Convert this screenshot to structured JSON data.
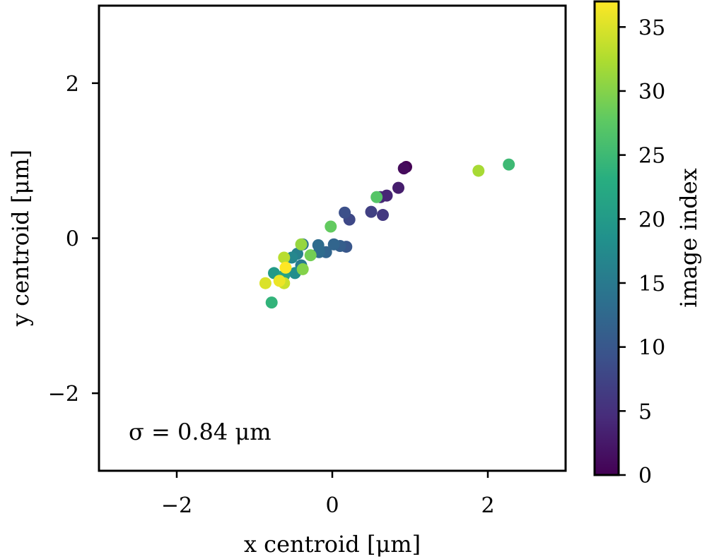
{
  "chart_data": {
    "type": "scatter",
    "title": "",
    "xlabel": "x centroid [μm]",
    "ylabel": "y centroid [μm]",
    "xlim": [
      -3,
      3
    ],
    "ylim": [
      -3,
      3
    ],
    "xticks": [
      -2,
      0,
      2
    ],
    "yticks": [
      -2,
      0,
      2
    ],
    "xtick_labels": [
      "−2",
      "0",
      "2"
    ],
    "ytick_labels": [
      "−2",
      "0",
      "2"
    ],
    "annotation": "σ = 0.84 μm",
    "colorbar": {
      "label": "image index",
      "colormap": "viridis",
      "range": [
        0,
        37
      ],
      "ticks": [
        0,
        5,
        10,
        15,
        20,
        25,
        30,
        35
      ],
      "tick_labels": [
        "0",
        "5",
        "10",
        "15",
        "20",
        "25",
        "30",
        "35"
      ]
    },
    "points": [
      {
        "x": 0.95,
        "y": 0.92,
        "c": 0
      },
      {
        "x": 0.92,
        "y": 0.9,
        "c": 1
      },
      {
        "x": 0.85,
        "y": 0.65,
        "c": 3
      },
      {
        "x": 0.7,
        "y": 0.55,
        "c": 4
      },
      {
        "x": 0.62,
        "y": 0.53,
        "c": 4
      },
      {
        "x": 0.65,
        "y": 0.3,
        "c": 6
      },
      {
        "x": 0.5,
        "y": 0.34,
        "c": 7
      },
      {
        "x": 0.22,
        "y": 0.24,
        "c": 8
      },
      {
        "x": 0.16,
        "y": 0.33,
        "c": 9
      },
      {
        "x": 0.18,
        "y": -0.11,
        "c": 10
      },
      {
        "x": 0.1,
        "y": -0.1,
        "c": 11
      },
      {
        "x": 0.02,
        "y": -0.08,
        "c": 12
      },
      {
        "x": -0.08,
        "y": -0.18,
        "c": 12
      },
      {
        "x": -0.17,
        "y": -0.18,
        "c": 13
      },
      {
        "x": -0.18,
        "y": -0.09,
        "c": 13
      },
      {
        "x": -0.38,
        "y": -0.08,
        "c": 14
      },
      {
        "x": -0.4,
        "y": -0.35,
        "c": 15
      },
      {
        "x": -0.45,
        "y": -0.2,
        "c": 16
      },
      {
        "x": -0.52,
        "y": -0.25,
        "c": 17
      },
      {
        "x": -0.48,
        "y": -0.45,
        "c": 18
      },
      {
        "x": -0.75,
        "y": -0.45,
        "c": 20
      },
      {
        "x": -0.62,
        "y": -0.48,
        "c": 21
      },
      {
        "x": -0.78,
        "y": -0.83,
        "c": 24
      },
      {
        "x": 2.27,
        "y": 0.95,
        "c": 25
      },
      {
        "x": 0.57,
        "y": 0.53,
        "c": 27
      },
      {
        "x": -0.02,
        "y": 0.15,
        "c": 28
      },
      {
        "x": -0.28,
        "y": -0.22,
        "c": 29
      },
      {
        "x": -0.38,
        "y": -0.4,
        "c": 30
      },
      {
        "x": -0.4,
        "y": -0.08,
        "c": 31
      },
      {
        "x": 1.88,
        "y": 0.87,
        "c": 32
      },
      {
        "x": -0.62,
        "y": -0.25,
        "c": 33
      },
      {
        "x": -0.62,
        "y": -0.58,
        "c": 34
      },
      {
        "x": -0.86,
        "y": -0.58,
        "c": 35
      },
      {
        "x": -0.68,
        "y": -0.55,
        "c": 36
      },
      {
        "x": -0.6,
        "y": -0.38,
        "c": 37
      }
    ]
  }
}
